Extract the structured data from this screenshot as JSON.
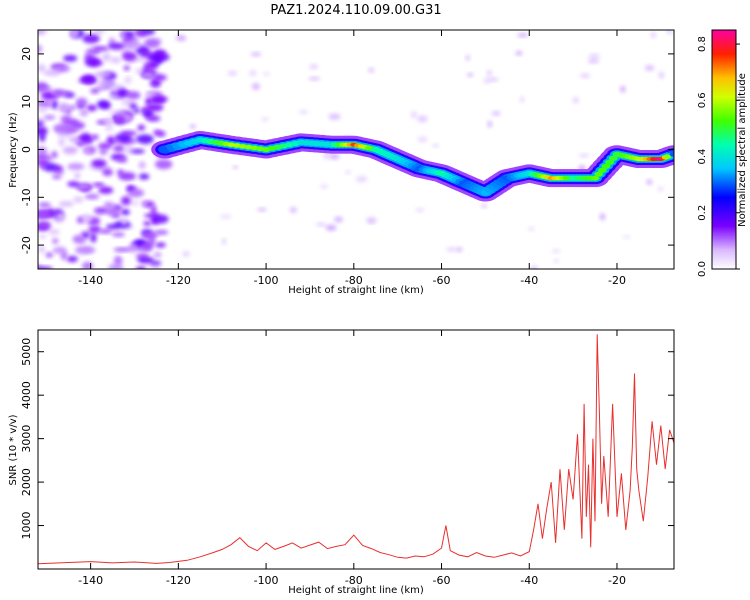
{
  "title": "PAZ1.2024.110.09.00.G31",
  "chart_data": [
    {
      "type": "heatmap",
      "xlabel": "Height of straight line (km)",
      "ylabel": "Frequency (Hz)",
      "xlim": [
        -152,
        -7
      ],
      "ylim": [
        -25,
        25
      ],
      "xticks": [
        -140,
        -120,
        -100,
        -80,
        -60,
        -40,
        -20
      ],
      "yticks": [
        -20,
        -10,
        0,
        10,
        20
      ],
      "colorbar": {
        "label": "Normalized spectral amplitude",
        "range": [
          0,
          0.85
        ],
        "ticks": [
          0.0,
          0.2,
          0.4,
          0.6,
          0.8
        ],
        "colormap": "gist_ncar-like (white, purple, blue, cyan, green, yellow, red, magenta)"
      },
      "signal_track": {
        "description": "dominant-frequency ridge",
        "x": [
          -123,
          -115,
          -108,
          -100,
          -92,
          -85,
          -80,
          -75,
          -70,
          -65,
          -60,
          -55,
          -50,
          -45,
          -40,
          -35,
          -30,
          -25,
          -20,
          -15,
          -10,
          -7
        ],
        "y": [
          0,
          2,
          1,
          0,
          1.5,
          1,
          1,
          0,
          -2,
          -4,
          -5,
          -7,
          -9,
          -6,
          -5,
          -6,
          -6,
          -6,
          -1,
          -2,
          -2,
          -1
        ],
        "peak_amplitude": [
          0.3,
          0.4,
          0.6,
          0.55,
          0.4,
          0.4,
          0.75,
          0.45,
          0.4,
          0.3,
          0.45,
          0.3,
          0.35,
          0.3,
          0.4,
          0.7,
          0.45,
          0.55,
          0.5,
          0.6,
          0.85,
          0.3
        ]
      },
      "noise_region_x": [
        -152,
        -123
      ]
    },
    {
      "type": "line",
      "xlabel": "Height of straight line (km)",
      "ylabel": "SNR (10 * v/v)",
      "xlim": [
        -152,
        -7
      ],
      "ylim": [
        0,
        5500
      ],
      "xticks": [
        -140,
        -120,
        -100,
        -80,
        -60,
        -40,
        -20
      ],
      "yticks": [
        1000,
        2000,
        3000,
        4000,
        5000
      ],
      "color": "#e8302e",
      "x": [
        -152,
        -145,
        -140,
        -135,
        -130,
        -125,
        -122,
        -118,
        -115,
        -112,
        -110,
        -108,
        -106,
        -104,
        -102,
        -100,
        -98,
        -96,
        -94,
        -92,
        -90,
        -88,
        -86,
        -84,
        -82,
        -80,
        -78,
        -76,
        -74,
        -72,
        -70,
        -68,
        -66,
        -64,
        -62,
        -60,
        -59,
        -58,
        -56,
        -54,
        -52,
        -50,
        -48,
        -46,
        -44,
        -42,
        -40,
        -39,
        -38,
        -37,
        -36,
        -35,
        -34,
        -33,
        -32,
        -31,
        -30,
        -29,
        -28,
        -27.5,
        -27,
        -26.5,
        -26,
        -25.5,
        -25,
        -24.5,
        -24,
        -23.5,
        -23,
        -22,
        -21,
        -20,
        -19,
        -18,
        -17,
        -16.5,
        -16,
        -15.5,
        -15,
        -14,
        -13,
        -12,
        -11,
        -10,
        -9,
        -8,
        -7
      ],
      "y": [
        120,
        150,
        170,
        140,
        160,
        130,
        150,
        200,
        280,
        380,
        450,
        560,
        720,
        520,
        420,
        600,
        450,
        520,
        600,
        480,
        550,
        620,
        470,
        520,
        560,
        780,
        540,
        470,
        380,
        330,
        270,
        250,
        300,
        280,
        340,
        480,
        1000,
        420,
        320,
        280,
        380,
        300,
        270,
        320,
        370,
        300,
        400,
        900,
        1500,
        700,
        1400,
        2000,
        600,
        2300,
        900,
        2300,
        1600,
        3100,
        700,
        3800,
        1200,
        2400,
        500,
        3000,
        1100,
        5400,
        3600,
        1500,
        2600,
        1200,
        3800,
        1200,
        2200,
        900,
        1800,
        2800,
        4500,
        2300,
        1800,
        1100,
        2100,
        3400,
        2400,
        3300,
        2300,
        3200,
        2900
      ]
    }
  ]
}
